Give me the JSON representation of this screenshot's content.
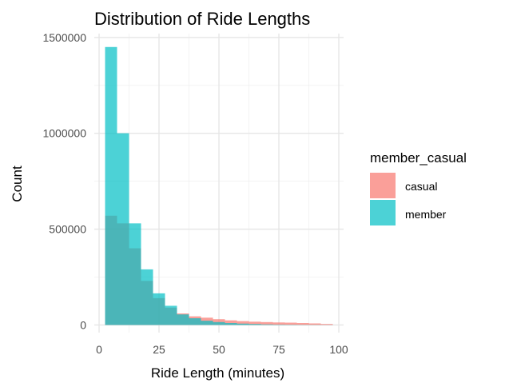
{
  "chart_data": {
    "type": "bar",
    "subtype": "overlapping-histogram",
    "title": "Distribution of Ride Lengths",
    "xlabel": "Ride Length (minutes)",
    "ylabel": "Count",
    "xlim": [
      -2,
      102
    ],
    "ylim": [
      -40000,
      1520000
    ],
    "x_ticks": [
      0,
      25,
      50,
      75,
      100
    ],
    "x_tick_labels": [
      "0",
      "25",
      "50",
      "75",
      "100"
    ],
    "y_ticks": [
      0,
      500000,
      1000000,
      1500000
    ],
    "y_tick_labels": [
      "0",
      "500000",
      "1000000",
      "1500000"
    ],
    "grid": true,
    "bin_width": 5,
    "legend_title": "member_casual",
    "legend_position": "right",
    "series": [
      {
        "name": "casual",
        "color": "#F8766D",
        "bins": [
          [
            2.5,
            7.5
          ],
          [
            7.5,
            12.5
          ],
          [
            12.5,
            17.5
          ],
          [
            17.5,
            22.5
          ],
          [
            22.5,
            27.5
          ],
          [
            27.5,
            32.5
          ],
          [
            32.5,
            37.5
          ],
          [
            37.5,
            42.5
          ],
          [
            42.5,
            47.5
          ],
          [
            47.5,
            52.5
          ],
          [
            52.5,
            57.5
          ],
          [
            57.5,
            62.5
          ],
          [
            62.5,
            67.5
          ],
          [
            67.5,
            72.5
          ],
          [
            72.5,
            77.5
          ],
          [
            77.5,
            82.5
          ],
          [
            82.5,
            87.5
          ],
          [
            87.5,
            92.5
          ],
          [
            92.5,
            97.5
          ]
        ],
        "values": [
          570000,
          530000,
          400000,
          230000,
          140000,
          90000,
          60000,
          45000,
          38000,
          30000,
          24000,
          20000,
          17000,
          15000,
          13000,
          12000,
          10000,
          8000,
          5000
        ]
      },
      {
        "name": "member",
        "color": "#00BFC4",
        "bins": [
          [
            2.5,
            7.5
          ],
          [
            7.5,
            12.5
          ],
          [
            12.5,
            17.5
          ],
          [
            17.5,
            22.5
          ],
          [
            22.5,
            27.5
          ],
          [
            27.5,
            32.5
          ],
          [
            32.5,
            37.5
          ],
          [
            37.5,
            42.5
          ],
          [
            42.5,
            47.5
          ],
          [
            47.5,
            52.5
          ],
          [
            52.5,
            57.5
          ],
          [
            57.5,
            62.5
          ],
          [
            62.5,
            67.5
          ],
          [
            67.5,
            72.5
          ],
          [
            72.5,
            77.5
          ],
          [
            77.5,
            82.5
          ],
          [
            82.5,
            87.5
          ],
          [
            87.5,
            92.5
          ],
          [
            92.5,
            97.5
          ]
        ],
        "values": [
          1450000,
          1000000,
          530000,
          290000,
          165000,
          100000,
          55000,
          35000,
          22000,
          15000,
          10000,
          7000,
          5000,
          3000,
          2000,
          1500,
          1000,
          800,
          500
        ]
      }
    ]
  }
}
